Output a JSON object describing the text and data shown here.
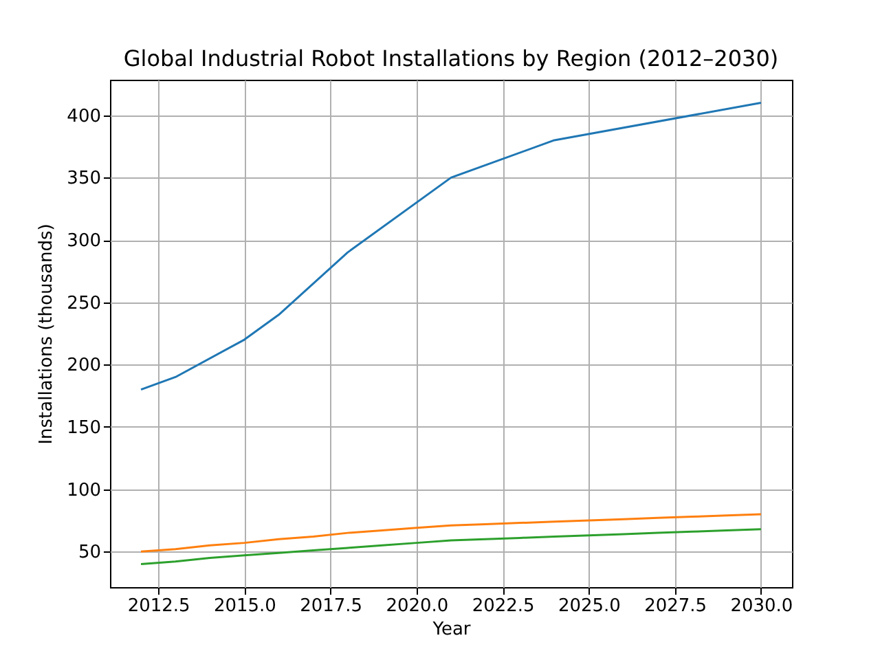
{
  "chart_data": {
    "type": "line",
    "title": "Global Industrial Robot Installations by Region (2012–2030)",
    "xlabel": "Year",
    "ylabel": "Installations (thousands)",
    "xlim": [
      2011.1,
      2030.9
    ],
    "ylim": [
      21.5,
      428.5
    ],
    "xticks": [
      {
        "value": 2012.5,
        "label": "2012.5"
      },
      {
        "value": 2015,
        "label": "2015.0"
      },
      {
        "value": 2017.5,
        "label": "2017.5"
      },
      {
        "value": 2020,
        "label": "2020.0"
      },
      {
        "value": 2022.5,
        "label": "2022.5"
      },
      {
        "value": 2025,
        "label": "2025.0"
      },
      {
        "value": 2027.5,
        "label": "2027.5"
      },
      {
        "value": 2030,
        "label": "2030.0"
      }
    ],
    "yticks": [
      50,
      100,
      150,
      200,
      250,
      300,
      350,
      400
    ],
    "grid": true,
    "legend": false,
    "series": [
      {
        "color": "#1f77b4",
        "x": [
          2012,
          2013,
          2015,
          2016,
          2018,
          2021,
          2024,
          2030
        ],
        "values": [
          180,
          190,
          220,
          240,
          290,
          350,
          380,
          410
        ]
      },
      {
        "color": "#ff7f0e",
        "x": [
          2012,
          2013,
          2014,
          2015,
          2016,
          2017,
          2018,
          2019,
          2020,
          2021,
          2022,
          2023,
          2024,
          2025,
          2026,
          2027,
          2028,
          2029,
          2030
        ],
        "values": [
          50,
          52,
          55,
          57,
          60,
          62,
          65,
          67,
          69,
          71,
          72,
          73,
          74,
          75,
          76,
          77,
          78,
          79,
          80
        ]
      },
      {
        "color": "#2ca02c",
        "x": [
          2012,
          2013,
          2014,
          2015,
          2016,
          2017,
          2018,
          2019,
          2020,
          2021,
          2022,
          2023,
          2024,
          2025,
          2026,
          2027,
          2028,
          2029,
          2030
        ],
        "values": [
          40,
          42,
          45,
          47,
          49,
          51,
          53,
          55,
          57,
          59,
          60,
          61,
          62,
          63,
          64,
          65,
          66,
          67,
          68
        ]
      }
    ]
  }
}
